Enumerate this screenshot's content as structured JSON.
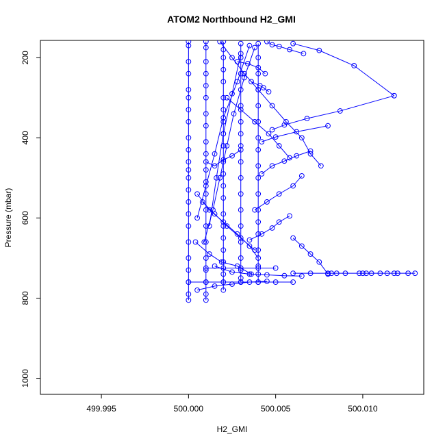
{
  "chart_data": {
    "type": "line",
    "title": "ATOM2 Northbound H2_GMI",
    "xlabel": "H2_GMI",
    "ylabel": "Pressure (mbar)",
    "xlim": [
      499.9915,
      500.0135
    ],
    "ylim": [
      1040,
      157
    ],
    "y_reversed": true,
    "x_ticks": [
      "499.995",
      "500.000",
      "500.005",
      "500.010"
    ],
    "x_tick_values": [
      499.995,
      500.0,
      500.005,
      500.01
    ],
    "y_ticks": [
      "200",
      "400",
      "600",
      "800",
      "1000"
    ],
    "y_tick_values": [
      200,
      400,
      600,
      800,
      1000
    ],
    "grid": false,
    "legend": "none",
    "series_color": "#0000ff",
    "marker": "open-circle",
    "series": [
      {
        "x": [
          500.0,
          500.0,
          500.0,
          500.0,
          500.0,
          500.0,
          500.0,
          500.0,
          500.0,
          500.0,
          500.0,
          500.0,
          500.0,
          500.0,
          500.0,
          500.0,
          500.0,
          500.0,
          500.0,
          500.0,
          500.0,
          500.0,
          500.0
        ],
        "y": [
          160,
          170,
          210,
          240,
          280,
          300,
          330,
          360,
          400,
          430,
          460,
          480,
          500,
          530,
          560,
          590,
          620,
          660,
          700,
          730,
          760,
          790,
          805
        ]
      },
      {
        "x": [
          500.001,
          500.001,
          500.001,
          500.001,
          500.001,
          500.001,
          500.001,
          500.001,
          500.001,
          500.001,
          500.001,
          500.001,
          500.001,
          500.001,
          500.001,
          500.001,
          500.001,
          500.001,
          500.001,
          500.001,
          500.001
        ],
        "y": [
          160,
          175,
          210,
          240,
          270,
          300,
          340,
          370,
          410,
          440,
          480,
          510,
          540,
          580,
          620,
          660,
          700,
          730,
          760,
          790,
          805
        ]
      },
      {
        "x": [
          500.002,
          500.002,
          500.002,
          500.002,
          500.002,
          500.002,
          500.002,
          500.002,
          500.002,
          500.002,
          500.002,
          500.002,
          500.002,
          500.002,
          500.002,
          500.002,
          500.002,
          500.002,
          500.002,
          500.002,
          500.002,
          500.002
        ],
        "y": [
          160,
          180,
          200,
          230,
          260,
          300,
          330,
          360,
          390,
          420,
          460,
          490,
          520,
          550,
          590,
          620,
          650,
          680,
          710,
          740,
          760,
          780
        ]
      },
      {
        "x": [
          500.003,
          500.003,
          500.003,
          500.003,
          500.003,
          500.003,
          500.003,
          500.003,
          500.003,
          500.003,
          500.003,
          500.003,
          500.003,
          500.003,
          500.003,
          500.003,
          500.003,
          500.003
        ],
        "y": [
          165,
          200,
          240,
          280,
          320,
          360,
          390,
          420,
          460,
          500,
          540,
          580,
          620,
          660,
          700,
          730,
          750,
          760
        ]
      },
      {
        "x": [
          500.004,
          500.004,
          500.004,
          500.004,
          500.004,
          500.004,
          500.004,
          500.004,
          500.004,
          500.004,
          500.004,
          500.004,
          500.004,
          500.004,
          500.004,
          500.004,
          500.004,
          500.004
        ],
        "y": [
          165,
          200,
          240,
          280,
          320,
          360,
          400,
          430,
          470,
          500,
          540,
          580,
          610,
          640,
          680,
          720,
          740,
          760
        ]
      },
      {
        "x": [
          500.0045,
          500.0048,
          500.0052,
          500.0058,
          500.0066
        ],
        "y": [
          160,
          168,
          172,
          180,
          190
        ]
      },
      {
        "x": [
          500.006,
          500.0075,
          500.0095,
          500.0118
        ],
        "y": [
          165,
          182,
          220,
          295
        ]
      },
      {
        "x": [
          500.0118,
          500.0087,
          500.0068,
          500.0055,
          500.0048
        ],
        "y": [
          295,
          333,
          352,
          368,
          380
        ]
      },
      {
        "x": [
          500.008,
          500.0062,
          500.005,
          500.0042
        ],
        "y": [
          370,
          385,
          398,
          410
        ]
      },
      {
        "x": [
          500.007,
          500.0062,
          500.0055,
          500.0048,
          500.0042
        ],
        "y": [
          433,
          445,
          458,
          470,
          490
        ]
      },
      {
        "x": [
          500.0065,
          500.006,
          500.0052,
          500.0045,
          500.0038
        ],
        "y": [
          495,
          520,
          540,
          560,
          580
        ]
      },
      {
        "x": [
          500.0058,
          500.0052,
          500.0048,
          500.0042,
          500.0035
        ],
        "y": [
          595,
          610,
          625,
          640,
          655
        ]
      },
      {
        "x": [
          500.006,
          500.0065,
          500.007,
          500.0075,
          500.008
        ],
        "y": [
          650,
          670,
          690,
          710,
          740
        ]
      },
      {
        "x": [
          500.0018,
          500.0025,
          500.0032,
          500.004,
          500.0048,
          500.0056,
          500.0065,
          500.007,
          500.0076
        ],
        "y": [
          160,
          200,
          240,
          280,
          320,
          360,
          400,
          440,
          470
        ]
      },
      {
        "x": [
          500.0035,
          500.0028,
          500.002,
          500.0015,
          500.001,
          500.0005
        ],
        "y": [
          170,
          260,
          350,
          440,
          520,
          600
        ]
      },
      {
        "x": [
          500.0038,
          500.0032,
          500.0026,
          500.0022,
          500.0018,
          500.0014,
          500.0009
        ],
        "y": [
          175,
          250,
          340,
          420,
          500,
          580,
          660
        ]
      },
      {
        "x": [
          500.003,
          500.0025,
          500.002,
          500.0016,
          500.0012
        ],
        "y": [
          190,
          290,
          390,
          500,
          620
        ]
      },
      {
        "x": [
          500.0008,
          500.0015,
          500.0022,
          500.003,
          500.0038
        ],
        "y": [
          560,
          590,
          620,
          650,
          680
        ]
      },
      {
        "x": [
          500.0005,
          500.0012,
          500.002,
          500.0028,
          500.0035,
          500.004
        ],
        "y": [
          540,
          580,
          610,
          640,
          670,
          700
        ]
      },
      {
        "x": [
          500.0004,
          500.0012,
          500.0019,
          500.0028,
          500.0036
        ],
        "y": [
          660,
          690,
          710,
          720,
          740
        ]
      },
      {
        "x": [
          500.0015,
          500.0025,
          500.0035,
          500.0045,
          500.0055,
          500.0065
        ],
        "y": [
          720,
          735,
          740,
          742,
          744,
          745
        ]
      },
      {
        "x": [
          500.006,
          500.007,
          500.008,
          500.0082,
          500.0085,
          500.009,
          500.0098,
          500.01,
          500.0102,
          500.0105,
          500.011,
          500.0114,
          500.0118,
          500.012,
          500.0126,
          500.013
        ],
        "y": [
          738,
          738,
          738,
          738,
          738,
          738,
          738,
          738,
          738,
          738,
          738,
          738,
          738,
          738,
          738,
          738
        ]
      },
      {
        "x": [
          500.0,
          500.001,
          500.002,
          500.003,
          500.004,
          500.005,
          500.006
        ],
        "y": [
          760,
          760,
          760,
          760,
          760,
          760,
          760
        ]
      },
      {
        "x": [
          500.001,
          500.002,
          500.003,
          500.004,
          500.005
        ],
        "y": [
          725,
          725,
          725,
          725,
          725
        ]
      },
      {
        "x": [
          500.0005,
          500.0015,
          500.0025,
          500.0035,
          500.0045
        ],
        "y": [
          780,
          770,
          765,
          760,
          758
        ]
      },
      {
        "x": [
          500.001,
          500.0015,
          500.002,
          500.0025,
          500.003
        ],
        "y": [
          460,
          470,
          455,
          445,
          430
        ]
      },
      {
        "x": [
          500.0022,
          500.003,
          500.0038,
          500.0046,
          500.0052,
          500.0058
        ],
        "y": [
          300,
          330,
          360,
          390,
          420,
          450
        ]
      },
      {
        "x": [
          500.0028,
          500.0034,
          500.004,
          500.0044
        ],
        "y": [
          210,
          215,
          225,
          240
        ]
      },
      {
        "x": [
          500.0036,
          500.0041,
          500.0043,
          500.0046
        ],
        "y": [
          260,
          270,
          275,
          285
        ]
      }
    ]
  }
}
